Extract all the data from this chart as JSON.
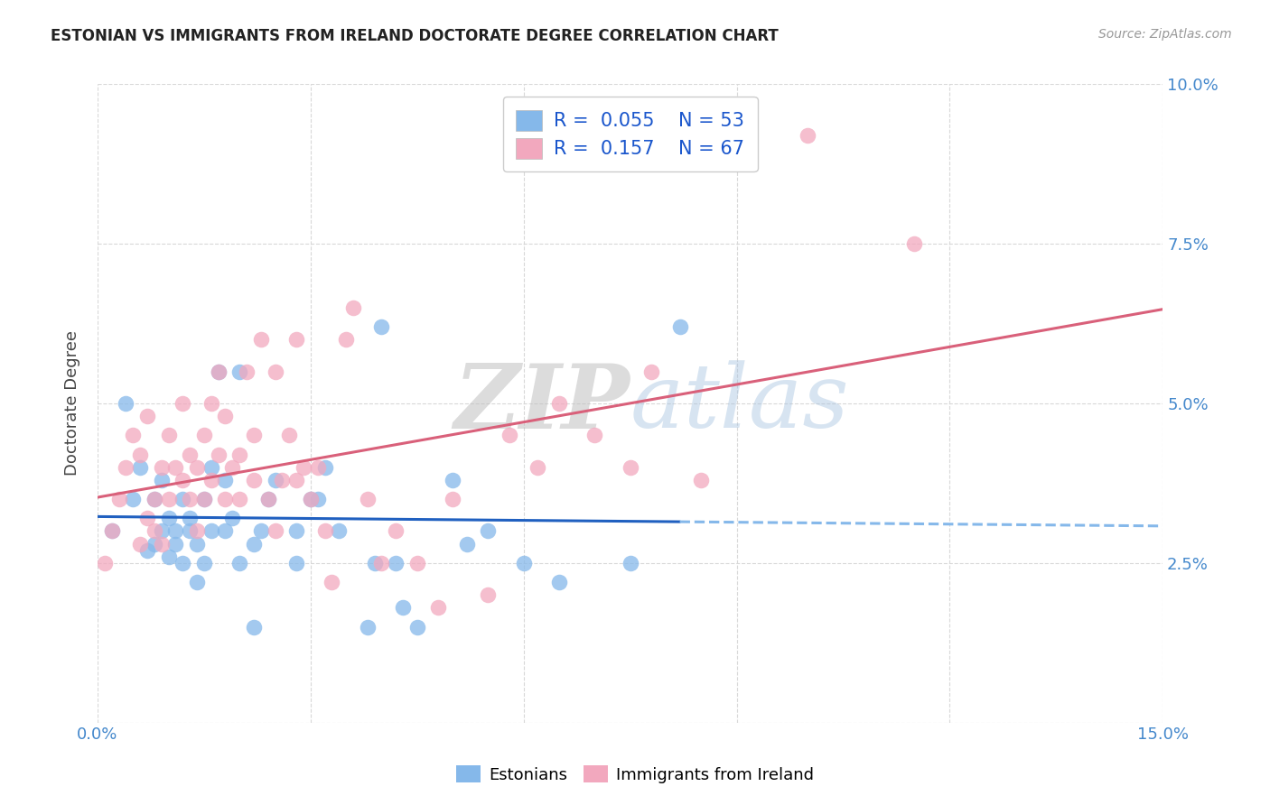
{
  "title": "ESTONIAN VS IMMIGRANTS FROM IRELAND DOCTORATE DEGREE CORRELATION CHART",
  "source": "Source: ZipAtlas.com",
  "ylabel": "Doctorate Degree",
  "xlim": [
    0.0,
    0.15
  ],
  "ylim": [
    0.0,
    0.1
  ],
  "background_color": "#ffffff",
  "grid_color": "#d8d8d8",
  "watermark_zip": "ZIP",
  "watermark_atlas": "atlas",
  "blue_color": "#85b8ea",
  "pink_color": "#f2a8be",
  "blue_line_color": "#2060c0",
  "pink_line_color": "#d9607a",
  "R_blue": 0.055,
  "N_blue": 53,
  "R_pink": 0.157,
  "N_pink": 67,
  "blue_points_x": [
    0.002,
    0.004,
    0.005,
    0.006,
    0.007,
    0.008,
    0.008,
    0.009,
    0.009,
    0.01,
    0.01,
    0.011,
    0.011,
    0.012,
    0.012,
    0.013,
    0.013,
    0.014,
    0.014,
    0.015,
    0.015,
    0.016,
    0.016,
    0.017,
    0.018,
    0.018,
    0.019,
    0.02,
    0.02,
    0.022,
    0.022,
    0.023,
    0.024,
    0.025,
    0.028,
    0.028,
    0.03,
    0.031,
    0.032,
    0.034,
    0.038,
    0.039,
    0.04,
    0.042,
    0.043,
    0.045,
    0.05,
    0.052,
    0.055,
    0.06,
    0.065,
    0.075,
    0.082
  ],
  "blue_points_y": [
    0.03,
    0.05,
    0.035,
    0.04,
    0.027,
    0.028,
    0.035,
    0.03,
    0.038,
    0.026,
    0.032,
    0.028,
    0.03,
    0.035,
    0.025,
    0.03,
    0.032,
    0.028,
    0.022,
    0.025,
    0.035,
    0.03,
    0.04,
    0.055,
    0.038,
    0.03,
    0.032,
    0.025,
    0.055,
    0.015,
    0.028,
    0.03,
    0.035,
    0.038,
    0.03,
    0.025,
    0.035,
    0.035,
    0.04,
    0.03,
    0.015,
    0.025,
    0.062,
    0.025,
    0.018,
    0.015,
    0.038,
    0.028,
    0.03,
    0.025,
    0.022,
    0.025,
    0.062
  ],
  "pink_points_x": [
    0.001,
    0.002,
    0.003,
    0.004,
    0.005,
    0.006,
    0.006,
    0.007,
    0.007,
    0.008,
    0.008,
    0.009,
    0.009,
    0.01,
    0.01,
    0.011,
    0.012,
    0.012,
    0.013,
    0.013,
    0.014,
    0.014,
    0.015,
    0.015,
    0.016,
    0.016,
    0.017,
    0.017,
    0.018,
    0.018,
    0.019,
    0.02,
    0.02,
    0.021,
    0.022,
    0.022,
    0.023,
    0.024,
    0.025,
    0.025,
    0.026,
    0.027,
    0.028,
    0.028,
    0.029,
    0.03,
    0.031,
    0.032,
    0.033,
    0.035,
    0.036,
    0.038,
    0.04,
    0.042,
    0.045,
    0.048,
    0.05,
    0.055,
    0.058,
    0.062,
    0.065,
    0.07,
    0.075,
    0.078,
    0.085,
    0.1,
    0.115
  ],
  "pink_points_y": [
    0.025,
    0.03,
    0.035,
    0.04,
    0.045,
    0.028,
    0.042,
    0.032,
    0.048,
    0.035,
    0.03,
    0.028,
    0.04,
    0.035,
    0.045,
    0.04,
    0.038,
    0.05,
    0.035,
    0.042,
    0.03,
    0.04,
    0.035,
    0.045,
    0.038,
    0.05,
    0.042,
    0.055,
    0.035,
    0.048,
    0.04,
    0.035,
    0.042,
    0.055,
    0.038,
    0.045,
    0.06,
    0.035,
    0.03,
    0.055,
    0.038,
    0.045,
    0.038,
    0.06,
    0.04,
    0.035,
    0.04,
    0.03,
    0.022,
    0.06,
    0.065,
    0.035,
    0.025,
    0.03,
    0.025,
    0.018,
    0.035,
    0.02,
    0.045,
    0.04,
    0.05,
    0.045,
    0.04,
    0.055,
    0.038,
    0.092,
    0.075
  ]
}
